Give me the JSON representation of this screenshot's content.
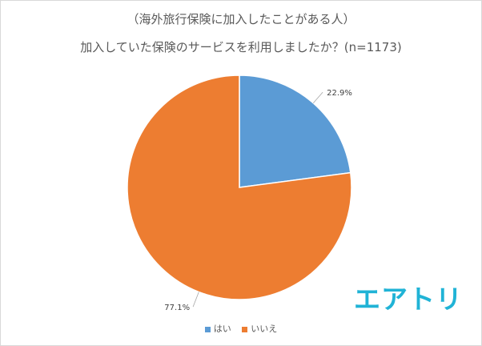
{
  "chart_data": {
    "type": "pie",
    "title": "（海外旅行保険に加入したことがある人）",
    "subtitle": "加入していた保険のサービスを利用しましたか？(n=1173)",
    "slices": [
      {
        "name": "はい",
        "value": 22.9,
        "label": "22.9%",
        "color": "#5b9bd5"
      },
      {
        "name": "いいえ",
        "value": 77.1,
        "label": "77.1%",
        "color": "#ed7d31"
      }
    ],
    "start_angle_deg": 0,
    "direction": "clockwise",
    "legend_position": "bottom"
  },
  "logo_text": "エアトリ",
  "logo_color": "#20b3d6"
}
